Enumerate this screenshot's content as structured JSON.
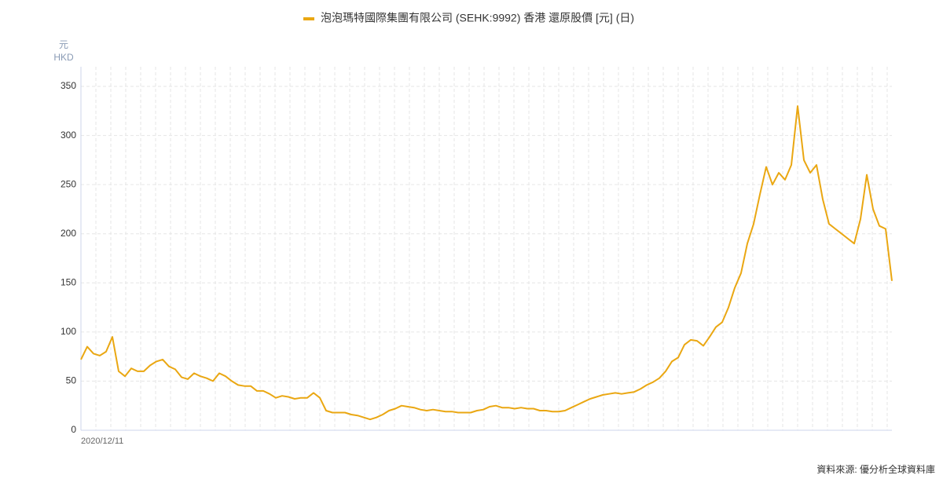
{
  "chart_data": {
    "type": "line",
    "title": "泡泡瑪特國際集團有限公司 (SEHK:9992) 香港 還原股價 [元] (日)",
    "y_unit": "元",
    "y_label": "HKD",
    "source": "資料來源: 優分析全球資料庫",
    "categories": [
      "2020/12/11",
      null,
      null,
      null,
      null,
      null,
      null,
      null,
      null,
      null,
      null,
      null,
      null,
      null,
      null,
      null,
      null,
      null,
      null,
      null,
      null,
      null,
      null,
      null,
      null,
      null,
      null,
      null,
      null,
      null,
      null,
      null,
      null,
      null,
      null,
      null,
      null,
      null,
      null,
      null,
      null,
      null,
      null,
      null,
      null,
      null,
      null,
      null,
      null,
      null,
      null,
      null,
      null,
      null,
      null,
      null,
      null,
      null,
      null,
      null,
      null,
      null,
      null,
      null,
      null,
      null,
      null,
      null,
      null,
      null,
      null,
      null,
      null,
      null,
      null,
      null,
      null,
      null,
      null,
      null,
      null,
      null,
      null,
      null,
      null,
      null,
      null,
      null,
      null,
      null,
      null,
      null,
      null,
      null,
      null,
      null,
      null,
      null,
      null,
      null,
      null,
      null,
      null,
      null,
      null,
      null,
      null,
      null,
      null,
      null,
      null,
      null,
      null,
      null,
      null,
      null,
      null,
      null,
      null,
      null,
      null,
      null,
      null,
      null,
      null,
      null,
      null,
      null,
      null,
      null
    ],
    "series": [
      {
        "name": "泡泡瑪特國際集團有限公司 (SEHK:9992) 香港 還原股價 [元] (日)",
        "color": "#eaa712",
        "values": [
          72,
          85,
          78,
          76,
          80,
          95,
          60,
          55,
          63,
          60,
          60,
          66,
          70,
          72,
          65,
          62,
          54,
          52,
          58,
          55,
          53,
          50,
          58,
          55,
          50,
          46,
          45,
          45,
          40,
          40,
          37,
          33,
          35,
          34,
          32,
          33,
          33,
          38,
          33,
          20,
          18,
          18,
          18,
          16,
          15,
          13,
          11,
          13,
          16,
          20,
          22,
          25,
          24,
          23,
          21,
          20,
          21,
          20,
          19,
          19,
          18,
          18,
          18,
          20,
          21,
          24,
          25,
          23,
          23,
          22,
          23,
          22,
          22,
          20,
          20,
          19,
          19,
          20,
          23,
          26,
          29,
          32,
          34,
          36,
          37,
          38,
          37,
          38,
          39,
          42,
          46,
          49,
          53,
          60,
          70,
          74,
          87,
          92,
          91,
          86,
          95,
          105,
          110,
          125,
          145,
          160,
          190,
          210,
          240,
          268,
          250,
          262,
          255,
          270,
          330,
          275,
          262,
          270,
          235,
          210,
          205,
          200,
          195,
          190,
          215,
          260,
          225,
          208,
          205,
          152
        ]
      }
    ],
    "ylim": [
      0,
      370
    ],
    "yticks": [
      0,
      50,
      100,
      150,
      200,
      250,
      300,
      350
    ],
    "grid": true
  }
}
